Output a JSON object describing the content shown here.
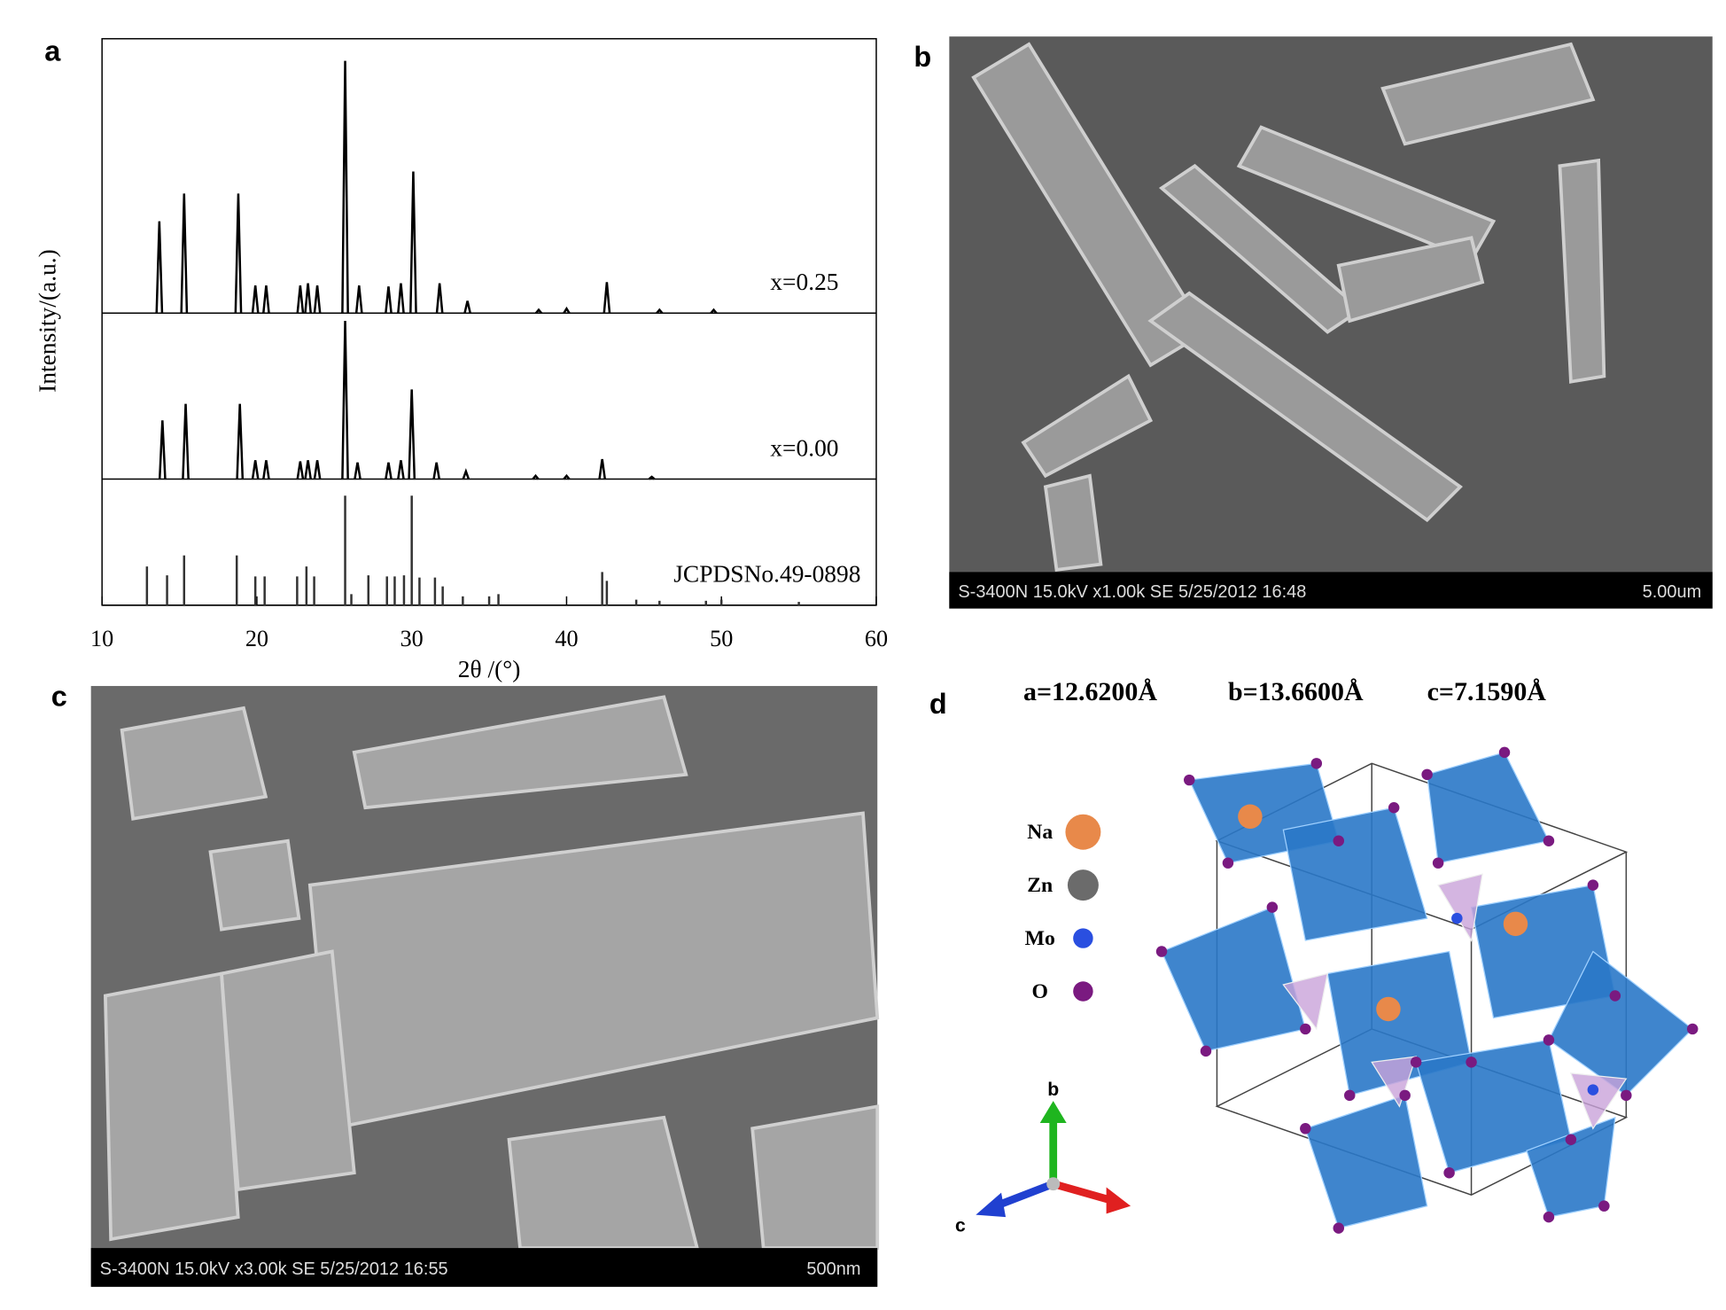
{
  "chart_data": {
    "type": "stem",
    "panel_label": "a",
    "x_label": "2θ /(°)",
    "y_label": "Intensity/(a.u.)",
    "xlim": [
      10,
      60
    ],
    "xticks": [
      10,
      20,
      30,
      40,
      50,
      60
    ],
    "ylim": [
      0,
      250
    ],
    "series": [
      {
        "name": "x=0.25",
        "color": "#000000",
        "x": [
          13.7,
          15.3,
          18.8,
          19.9,
          20.6,
          22.8,
          23.3,
          23.9,
          25.7,
          26.6,
          28.5,
          29.3,
          30.1,
          31.8,
          33.6,
          38.2,
          40.0,
          42.6,
          46.0,
          49.5
        ],
        "values": [
          83,
          108,
          108,
          25,
          25,
          25,
          27,
          25,
          228,
          25,
          24,
          27,
          128,
          27,
          11,
          3,
          4,
          28,
          3,
          3
        ]
      },
      {
        "name": "x=0.00",
        "color": "#000000",
        "x": [
          13.9,
          15.4,
          18.9,
          19.9,
          20.6,
          22.8,
          23.3,
          23.9,
          25.7,
          26.5,
          28.5,
          29.3,
          30.0,
          31.6,
          33.5,
          38.0,
          40.0,
          42.3,
          45.5
        ],
        "values": [
          53,
          68,
          68,
          17,
          17,
          16,
          17,
          17,
          143,
          15,
          15,
          17,
          81,
          15,
          7,
          3,
          3,
          18,
          2
        ]
      },
      {
        "name": "JCPDSNo.49-0898",
        "color": "#333333",
        "x": [
          12.9,
          14.2,
          15.3,
          18.7,
          19.9,
          20.5,
          22.6,
          23.2,
          23.7,
          25.7,
          26.1,
          27.2,
          28.4,
          28.9,
          29.5,
          30.0,
          30.5,
          31.5,
          32.0,
          33.3,
          35.0,
          35.6,
          42.3,
          42.6,
          44.5,
          46.0,
          49.0,
          50.0,
          55.0
        ],
        "values": [
          35,
          27,
          45,
          45,
          26,
          26,
          26,
          35,
          26,
          99,
          10,
          27,
          26,
          26,
          27,
          99,
          25,
          25,
          17,
          8,
          8,
          10,
          30,
          22,
          5,
          4,
          4,
          5,
          3
        ]
      }
    ]
  },
  "panels": {
    "b": {
      "label": "b",
      "info": "S-3400N 15.0kV x1.00k SE  5/25/2012 16:48",
      "scale": "5.00um"
    },
    "c": {
      "label": "c",
      "info": "S-3400N 15.0kV x3.00k SE  5/25/2012 16:55",
      "scale": "500nm"
    },
    "d": {
      "label": "d",
      "lattice": [
        "a=12.6200Å",
        "b=13.6600Å",
        "c=7.1590Å"
      ],
      "legend": [
        {
          "name": "Na",
          "color": "#e8894a"
        },
        {
          "name": "Zn",
          "color": "#6b6b6b"
        },
        {
          "name": "Mo",
          "color": "#2a4fe0"
        },
        {
          "name": "O",
          "color": "#7a1a80"
        }
      ],
      "axes": [
        "b",
        "c"
      ]
    }
  }
}
